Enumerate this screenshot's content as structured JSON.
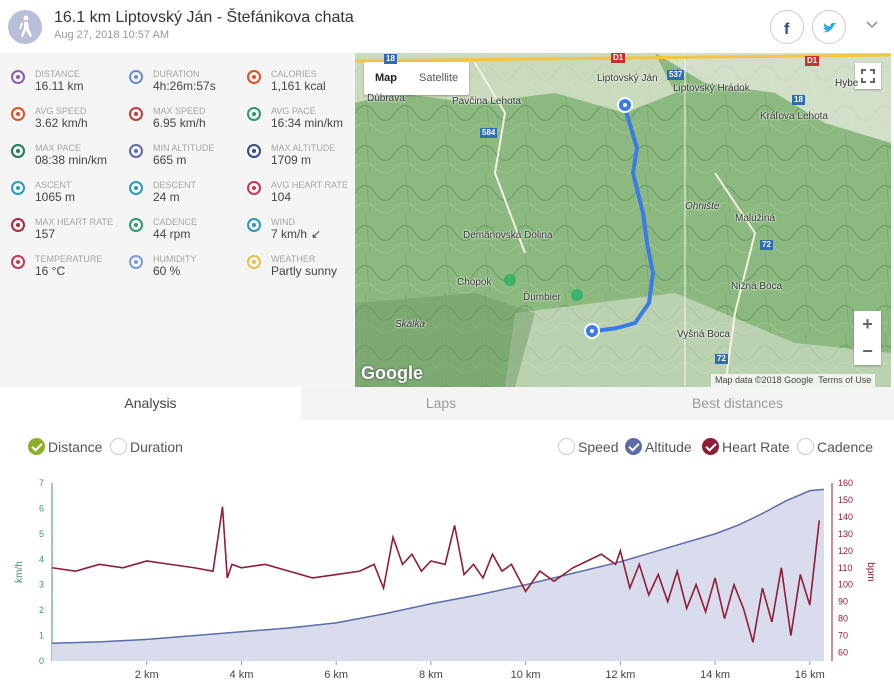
{
  "header": {
    "title": "16.1 km Liptovský Ján - Štefánikova chata",
    "date": "Aug 27, 2018 10:57 AM",
    "facebook_icon": "facebook-icon",
    "twitter_icon": "twitter-icon"
  },
  "stats": [
    {
      "label": "Distance",
      "value": "16.11 km",
      "icon": "distance-icon",
      "color": "#8e5fa8"
    },
    {
      "label": "Duration",
      "value": "4h:26m:57s",
      "icon": "stopwatch-icon",
      "color": "#6a8bd0"
    },
    {
      "label": "Calories",
      "value": "1,161 kcal",
      "icon": "flame-icon",
      "color": "#e0502b"
    },
    {
      "label": "Avg speed",
      "value": "3.62 km/h",
      "icon": "speedometer-icon",
      "color": "#e0502b"
    },
    {
      "label": "Max speed",
      "value": "6.95 km/h",
      "icon": "speedometer-icon",
      "color": "#c43a3a"
    },
    {
      "label": "Avg pace",
      "value": "16:34 min/km",
      "icon": "pace-icon",
      "color": "#2e9a6a"
    },
    {
      "label": "Max pace",
      "value": "08:38 min/km",
      "icon": "pace-icon",
      "color": "#1f7a5a"
    },
    {
      "label": "Min altitude",
      "value": "665 m",
      "icon": "mountain-icon",
      "color": "#5a6aa8"
    },
    {
      "label": "Max altitude",
      "value": "1709 m",
      "icon": "mountain-icon",
      "color": "#3a4a88"
    },
    {
      "label": "Ascent",
      "value": "1065 m",
      "icon": "ascent-icon",
      "color": "#2a9bb8"
    },
    {
      "label": "Descent",
      "value": "24 m",
      "icon": "descent-icon",
      "color": "#2a9bb8"
    },
    {
      "label": "Avg heart rate",
      "value": "104",
      "icon": "heart-rate-icon",
      "color": "#c23a55"
    },
    {
      "label": "Max heart rate",
      "value": "157",
      "icon": "heart-rate-icon",
      "color": "#b0263f"
    },
    {
      "label": "Cadence",
      "value": "44 rpm",
      "icon": "cadence-icon",
      "color": "#2e9a6a"
    },
    {
      "label": "Wind",
      "value": "7 km/h",
      "icon": "wind-icon",
      "color": "#2a9bb8",
      "extra": "↙"
    },
    {
      "label": "Temperature",
      "value": "16 °C",
      "icon": "thermometer-icon",
      "color": "#c23a55"
    },
    {
      "label": "Humidity",
      "value": "60 %",
      "icon": "humidity-icon",
      "color": "#7a9ae0"
    },
    {
      "label": "Weather",
      "value": "Partly sunny",
      "icon": "partly-sunny-icon",
      "color": "#e8c04a"
    }
  ],
  "map": {
    "map_button": "Map",
    "satellite_button": "Satellite",
    "zoom_in": "+",
    "zoom_out": "−",
    "google_logo": "Google",
    "attribution": "Map data ©2018 Google",
    "terms": "Terms of Use",
    "labels": [
      "Liptovský Ján",
      "Liptovský Hrádok",
      "Pavčina Lehota",
      "Kráľova Lehota",
      "Dúbrava",
      "Hybe",
      "Ohnište",
      "Malužiná",
      "Demänovská Dolina",
      "Chopok",
      "Ďumbier",
      "Nižná Boca",
      "Vyšná Boca",
      "Skalka"
    ],
    "roads": [
      "18",
      "D1",
      "537",
      "584",
      "72",
      "18",
      "72",
      "D1"
    ]
  },
  "tabs": [
    "Analysis",
    "Laps",
    "Best distances"
  ],
  "x_options": [
    {
      "label": "Distance",
      "checked": true
    },
    {
      "label": "Duration",
      "checked": false
    }
  ],
  "series_options": [
    {
      "label": "Speed",
      "checked": false
    },
    {
      "label": "Altitude",
      "checked": true
    },
    {
      "label": "Heart Rate",
      "checked": true
    },
    {
      "label": "Cadence",
      "checked": false
    }
  ],
  "chart_data": {
    "type": "line",
    "xlabel": "",
    "x_ticks": [
      "2 km",
      "4 km",
      "6 km",
      "8 km",
      "10 km",
      "12 km",
      "14 km",
      "16 km"
    ],
    "xlim": [
      0,
      16.3
    ],
    "y_left": {
      "label": "km/h",
      "ticks": [
        0,
        1,
        2,
        3,
        4,
        5,
        6,
        7
      ],
      "lim": [
        0,
        7
      ]
    },
    "y_right": {
      "label": "bpm",
      "ticks": [
        60,
        70,
        80,
        90,
        100,
        110,
        120,
        130,
        140,
        150,
        160
      ],
      "lim": [
        55,
        160
      ]
    },
    "series": [
      {
        "name": "Altitude",
        "color": "#5b6ca8",
        "fill": "#d9dcec",
        "axis": "left",
        "x": [
          0,
          1,
          2,
          3,
          4,
          5,
          6,
          7,
          8,
          9,
          10,
          11,
          12,
          13,
          14,
          14.5,
          15,
          15.5,
          16,
          16.3
        ],
        "values": [
          0.7,
          0.75,
          0.85,
          1.0,
          1.15,
          1.3,
          1.5,
          1.85,
          2.25,
          2.6,
          3.0,
          3.45,
          3.9,
          4.45,
          5.0,
          5.35,
          5.8,
          6.3,
          6.7,
          6.75
        ]
      },
      {
        "name": "Heart Rate",
        "color": "#8f1d3a",
        "axis": "right",
        "x": [
          0,
          0.5,
          1,
          1.5,
          2,
          2.5,
          3,
          3.4,
          3.6,
          3.7,
          3.8,
          4,
          4.5,
          5,
          5.5,
          6,
          6.5,
          6.8,
          7,
          7.2,
          7.4,
          7.6,
          7.8,
          8,
          8.3,
          8.5,
          8.7,
          8.9,
          9.1,
          9.3,
          9.5,
          9.7,
          10,
          10.3,
          10.6,
          11,
          11.3,
          11.6,
          11.9,
          12,
          12.2,
          12.4,
          12.6,
          12.8,
          13,
          13.2,
          13.4,
          13.6,
          13.8,
          14,
          14.2,
          14.4,
          14.6,
          14.8,
          15,
          15.2,
          15.4,
          15.6,
          15.8,
          16,
          16.2
        ],
        "values": [
          110,
          108,
          112,
          110,
          114,
          112,
          110,
          108,
          146,
          104,
          112,
          110,
          112,
          108,
          104,
          106,
          108,
          112,
          98,
          128,
          112,
          118,
          108,
          114,
          112,
          135,
          106,
          112,
          104,
          118,
          108,
          112,
          96,
          108,
          102,
          110,
          114,
          118,
          112,
          120,
          98,
          112,
          94,
          106,
          90,
          108,
          86,
          100,
          84,
          104,
          80,
          100,
          86,
          66,
          98,
          78,
          110,
          70,
          106,
          88,
          138
        ]
      }
    ]
  }
}
